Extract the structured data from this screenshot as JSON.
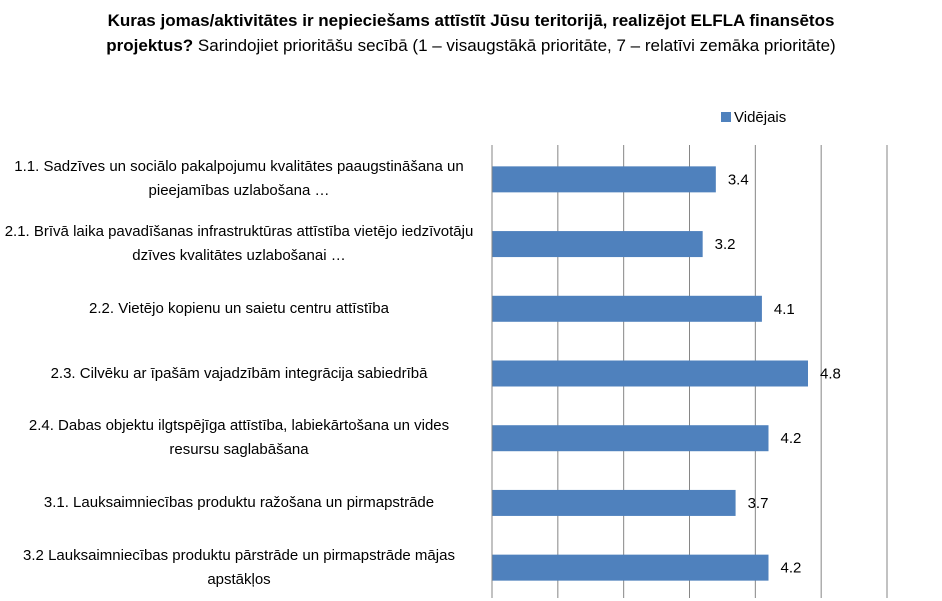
{
  "chart_data": {
    "type": "barh",
    "title": "Kuras jomas/aktivitātes ir nepieciešams attīstīt Jūsu teritorijā, realizējot ELFLA finansētos projektus?",
    "subtitle": "Sarindojiet prioritāšu secībā (1 – visaugstākā prioritāte, 7 – relatīvi zemāka prioritāte)",
    "categories": [
      "1.1. Sadzīves un sociālo pakalpojumu kvalitātes paaugstināšana un pieejamības uzlabošana …",
      "2.1. Brīvā laika pavadīšanas infrastruktūras attīstība vietējo iedzīvotāju dzīves kvalitātes uzlabošanai …",
      "2.2. Vietējo kopienu un saietu centru attīstība",
      "2.3. Cilvēku ar īpašām vajadzībām integrācija sabiedrībā",
      "2.4. Dabas objektu ilgtspējīga attīstība, labiekārtošana un vides resursu saglabāšana",
      "3.1. Lauksaimniecības produktu ražošana un pirmapstrāde",
      "3.2 Lauksaimniecības produktu pārstrāde un pirmapstrāde mājas apstākļos"
    ],
    "series": [
      {
        "name": "Vidējais",
        "color": "#4f81bd",
        "values": [
          3.4,
          3.2,
          4.1,
          4.8,
          4.2,
          3.7,
          4.2
        ]
      }
    ],
    "xlim": [
      0,
      6
    ],
    "xticks": [
      0,
      1,
      2,
      3,
      4,
      5,
      6
    ],
    "grid": true,
    "legend": "top-right"
  }
}
